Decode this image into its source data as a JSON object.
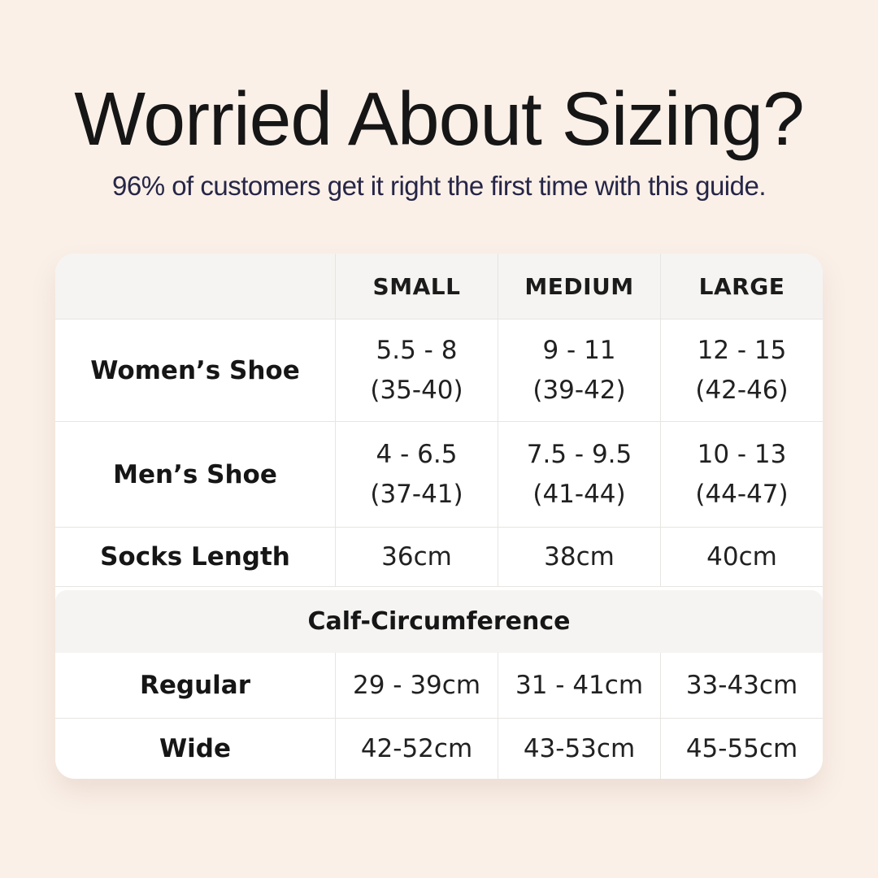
{
  "page": {
    "background_color": "#faf0e8",
    "title": "Worried About Sizing?",
    "title_color": "#161616",
    "subtitle": "96% of customers get it right the first time with this guide.",
    "subtitle_color": "#262647"
  },
  "table": {
    "colors": {
      "body_background": "#ffffff",
      "header_background": "#f5f4f2",
      "section_band_background": "#f5f4f2",
      "border": "#e7e5e2",
      "text": "#1d1d1d"
    },
    "columns": {
      "label": "",
      "small": "SMALL",
      "medium": "MEDIUM",
      "large": "LARGE"
    },
    "rows": {
      "womens_shoe": {
        "label": "Women’s Shoe",
        "small": {
          "line1": "5.5 - 8",
          "line2": "(35-40)"
        },
        "medium": {
          "line1": "9 - 11",
          "line2": "(39-42)"
        },
        "large": {
          "line1": "12 - 15",
          "line2": "(42-46)"
        }
      },
      "mens_shoe": {
        "label": "Men’s Shoe",
        "small": {
          "line1": "4 - 6.5",
          "line2": "(37-41)"
        },
        "medium": {
          "line1": "7.5 - 9.5",
          "line2": "(41-44)"
        },
        "large": {
          "line1": "10 - 13",
          "line2": "(44-47)"
        }
      },
      "socks_length": {
        "label": "Socks Length",
        "small": "36cm",
        "medium": "38cm",
        "large": "40cm"
      }
    },
    "section": {
      "title": "Calf-Circumference",
      "rows": {
        "regular": {
          "label": "Regular",
          "small": "29 - 39cm",
          "medium": "31 - 41cm",
          "large": "33-43cm"
        },
        "wide": {
          "label": "Wide",
          "small": "42-52cm",
          "medium": "43-53cm",
          "large": "45-55cm"
        }
      }
    }
  }
}
